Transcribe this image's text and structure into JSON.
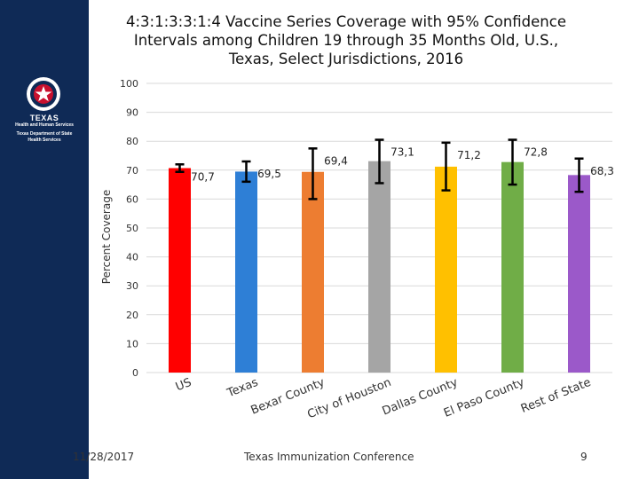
{
  "slide": {
    "title": "4:3:1:3:3:1:4 Vaccine Series Coverage with 95% Confidence Intervals among Children 19 through 35 Months Old, U.S., Texas, Select Jurisdictions, 2016",
    "footer_date": "11/28/2017",
    "footer_center": "Texas Immunization Conference",
    "page_number": "9"
  },
  "logo": {
    "line1": "TEXAS",
    "line2": "Health and Human Services",
    "line3": "Texas Department of State",
    "line4": "Health Services"
  },
  "colors": {
    "sidebar": "#0f2a56",
    "grid": "#d9d9d9",
    "error_bar": "#000000"
  },
  "chart_data": {
    "type": "bar",
    "title": "",
    "xlabel": "",
    "ylabel": "Percent Coverage",
    "ylim": [
      0,
      100
    ],
    "yticks": [
      0,
      10,
      20,
      30,
      40,
      50,
      60,
      70,
      80,
      90,
      100
    ],
    "categories": [
      "US",
      "Texas",
      "Bexar County",
      "City of Houston",
      "Dallas County",
      "El Paso County",
      "Rest of State"
    ],
    "values": [
      70.7,
      69.5,
      69.4,
      73.1,
      71.2,
      72.8,
      68.3
    ],
    "value_labels": [
      "70,7",
      "69,5",
      "69,4",
      "73,1",
      "71,2",
      "72,8",
      "68,3"
    ],
    "ci_lower": [
      69.4,
      66.0,
      60.0,
      65.5,
      63.0,
      65.0,
      62.5
    ],
    "ci_upper": [
      72.0,
      73.0,
      77.5,
      80.5,
      79.5,
      80.5,
      74.0
    ],
    "bar_colors": [
      "#ff0000",
      "#2e7fd6",
      "#ed7d31",
      "#a5a5a5",
      "#ffc000",
      "#70ad47",
      "#9b59c9"
    ],
    "grid": true
  }
}
